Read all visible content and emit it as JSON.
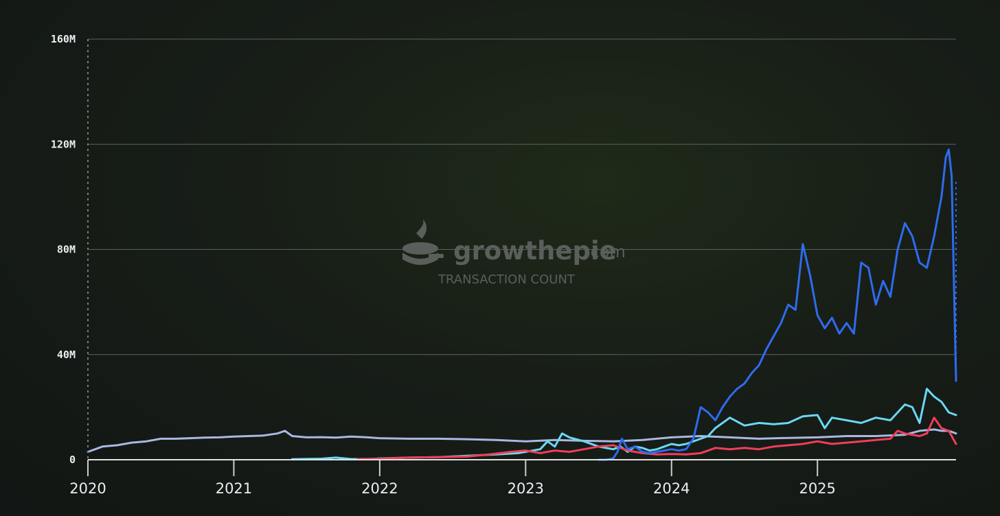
{
  "watermark": {
    "brand": "growthepie",
    "suffix": ".com",
    "subtitle": "TRANSACTION COUNT"
  },
  "chart_data": {
    "type": "line",
    "title": "TRANSACTION COUNT",
    "xlabel": "",
    "ylabel": "",
    "xlim": [
      2020.0,
      2025.95
    ],
    "ylim": [
      0,
      160
    ],
    "y_unit": "M",
    "yticks": [
      {
        "value": 0,
        "label": "0"
      },
      {
        "value": 40,
        "label": "40M"
      },
      {
        "value": 80,
        "label": "80M"
      },
      {
        "value": 120,
        "label": "120M"
      },
      {
        "value": 160,
        "label": "160M"
      }
    ],
    "xticks": [
      {
        "value": 2020,
        "label": "2020"
      },
      {
        "value": 2021,
        "label": "2021"
      },
      {
        "value": 2022,
        "label": "2022"
      },
      {
        "value": 2023,
        "label": "2023"
      },
      {
        "value": 2024,
        "label": "2024"
      },
      {
        "value": 2025,
        "label": "2025"
      }
    ],
    "grid": true,
    "series": [
      {
        "name": "series-lavender",
        "color": "#aab8e2",
        "x": [
          2020.0,
          2020.05,
          2020.1,
          2020.2,
          2020.3,
          2020.4,
          2020.5,
          2020.6,
          2020.7,
          2020.8,
          2020.9,
          2021.0,
          2021.1,
          2021.2,
          2021.3,
          2021.35,
          2021.4,
          2021.5,
          2021.6,
          2021.7,
          2021.8,
          2021.9,
          2022.0,
          2022.2,
          2022.4,
          2022.6,
          2022.8,
          2023.0,
          2023.2,
          2023.4,
          2023.6,
          2023.8,
          2024.0,
          2024.2,
          2024.4,
          2024.6,
          2024.8,
          2025.0,
          2025.2,
          2025.4,
          2025.6,
          2025.7,
          2025.8,
          2025.85,
          2025.9,
          2025.95
        ],
        "values": [
          3,
          4,
          5,
          5.5,
          6.5,
          7,
          8,
          8,
          8.2,
          8.4,
          8.5,
          8.8,
          9,
          9.2,
          10,
          11,
          9,
          8.5,
          8.6,
          8.4,
          8.8,
          8.6,
          8.2,
          8.0,
          8.0,
          7.8,
          7.5,
          7.0,
          7.5,
          7.2,
          7.0,
          7.5,
          8.5,
          9.0,
          8.5,
          8.0,
          8.3,
          8.5,
          9.0,
          9.0,
          9.5,
          11,
          11.5,
          11,
          11,
          10
        ]
      },
      {
        "name": "series-cyan",
        "color": "#6bd8f5",
        "x": [
          2021.4,
          2021.6,
          2021.7,
          2021.8,
          2021.9,
          2022.0,
          2022.2,
          2022.4,
          2022.6,
          2022.8,
          2022.95,
          2023.0,
          2023.1,
          2023.15,
          2023.2,
          2023.25,
          2023.3,
          2023.4,
          2023.5,
          2023.6,
          2023.65,
          2023.7,
          2023.75,
          2023.8,
          2023.85,
          2023.9,
          2023.95,
          2024.0,
          2024.05,
          2024.1,
          2024.15,
          2024.2,
          2024.25,
          2024.3,
          2024.35,
          2024.4,
          2024.5,
          2024.6,
          2024.7,
          2024.8,
          2024.9,
          2025.0,
          2025.05,
          2025.1,
          2025.2,
          2025.3,
          2025.4,
          2025.5,
          2025.55,
          2025.6,
          2025.65,
          2025.7,
          2025.75,
          2025.8,
          2025.85,
          2025.9,
          2025.95
        ],
        "values": [
          0.2,
          0.4,
          0.8,
          0.3,
          0.2,
          0.5,
          0.8,
          1.0,
          1.5,
          2.0,
          2.5,
          3.0,
          4.0,
          7.0,
          5.0,
          10.0,
          8.5,
          7.0,
          5.0,
          4.0,
          5.0,
          3.0,
          5.0,
          4.5,
          3.5,
          4.0,
          5.0,
          6.0,
          5.5,
          6.0,
          7.0,
          8.0,
          9.0,
          12.0,
          14.0,
          16.0,
          13.0,
          14.0,
          13.5,
          14.0,
          16.5,
          17.0,
          12.0,
          16.0,
          15.0,
          14.0,
          16.0,
          15.0,
          18.0,
          21.0,
          20.0,
          14.0,
          27.0,
          24.0,
          22.0,
          18.0,
          17.0
        ]
      },
      {
        "name": "series-red",
        "color": "#f23e58",
        "x": [
          2021.85,
          2022.0,
          2022.2,
          2022.4,
          2022.6,
          2022.75,
          2022.9,
          2023.0,
          2023.1,
          2023.2,
          2023.3,
          2023.4,
          2023.5,
          2023.6,
          2023.7,
          2023.8,
          2023.9,
          2024.0,
          2024.1,
          2024.2,
          2024.3,
          2024.4,
          2024.5,
          2024.6,
          2024.7,
          2024.8,
          2024.9,
          2025.0,
          2025.1,
          2025.2,
          2025.3,
          2025.4,
          2025.5,
          2025.55,
          2025.6,
          2025.7,
          2025.75,
          2025.8,
          2025.85,
          2025.9,
          2025.95
        ],
        "values": [
          0.3,
          0.4,
          0.8,
          1.0,
          1.2,
          2.0,
          3.0,
          3.5,
          2.5,
          3.5,
          3.0,
          4.0,
          5.0,
          5.5,
          3.5,
          2.5,
          2.0,
          2.2,
          2.0,
          2.5,
          4.5,
          4.0,
          4.5,
          4.0,
          5.0,
          5.5,
          6.0,
          7.0,
          6.0,
          6.5,
          7.0,
          7.5,
          8.0,
          11.0,
          10.0,
          9.0,
          10.0,
          16.0,
          12.0,
          11.0,
          6.0
        ]
      },
      {
        "name": "series-blue",
        "color": "#2f6bf0",
        "x": [
          2023.5,
          2023.55,
          2023.6,
          2023.63,
          2023.66,
          2023.7,
          2023.75,
          2023.8,
          2023.85,
          2023.9,
          2023.95,
          2024.0,
          2024.05,
          2024.1,
          2024.15,
          2024.2,
          2024.25,
          2024.3,
          2024.35,
          2024.4,
          2024.45,
          2024.5,
          2024.55,
          2024.6,
          2024.65,
          2024.7,
          2024.75,
          2024.8,
          2024.85,
          2024.9,
          2024.95,
          2025.0,
          2025.05,
          2025.1,
          2025.15,
          2025.2,
          2025.25,
          2025.3,
          2025.35,
          2025.4,
          2025.45,
          2025.5,
          2025.55,
          2025.6,
          2025.65,
          2025.7,
          2025.75,
          2025.8,
          2025.85,
          2025.88,
          2025.9,
          2025.92,
          2025.95
        ],
        "values": [
          0,
          0,
          0.5,
          3.0,
          8.0,
          4.0,
          5.0,
          3.0,
          2.5,
          3.0,
          3.5,
          4.0,
          3.5,
          4.0,
          8.0,
          20.0,
          18.0,
          15.0,
          20.0,
          24.0,
          27.0,
          29.0,
          33.0,
          36.0,
          42.0,
          47.0,
          52.0,
          59.0,
          57.0,
          82.0,
          70.0,
          55.0,
          50.0,
          54.0,
          48.0,
          52.0,
          48.0,
          75.0,
          73.0,
          59.0,
          68.0,
          62.0,
          80.0,
          90.0,
          85.0,
          75.0,
          73.0,
          85.0,
          100.0,
          115.0,
          118.0,
          108.0,
          30.0
        ]
      }
    ]
  }
}
